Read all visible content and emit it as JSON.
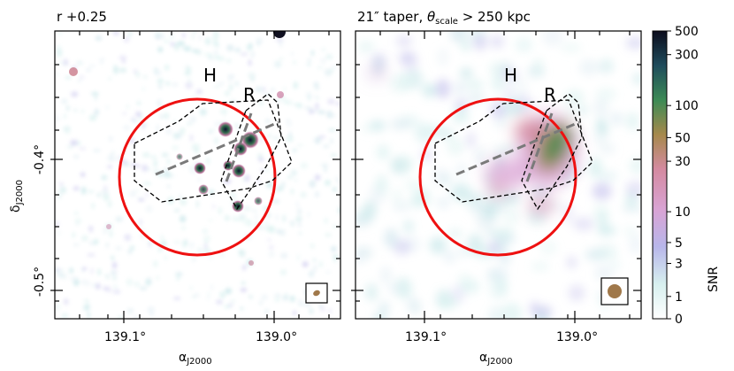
{
  "panels": [
    {
      "title_text": "r +0.25",
      "label_H": "H",
      "label_R": "R",
      "x_ticks": [
        "139.1°",
        "139.0°"
      ],
      "y_ticks": [
        "-0.4°",
        "-0.5°"
      ],
      "x_axis_label": "α",
      "x_axis_sub": "J2000",
      "y_axis_label": "δ",
      "y_axis_sub": "J2000"
    },
    {
      "title_main": "21″ taper, ",
      "title_theta": "θ",
      "title_sub": "scale",
      "title_rest": " > 250 kpc",
      "label_H": "H",
      "label_R": "R",
      "x_ticks": [
        "139.1°",
        "139.0°"
      ],
      "x_axis_label": "α",
      "x_axis_sub": "J2000"
    }
  ],
  "colorbar": {
    "label": "SNR",
    "ticks": [
      "500",
      "300",
      "100",
      "50",
      "30",
      "10",
      "5",
      "3",
      "1",
      "0"
    ],
    "tick_values": [
      500,
      300,
      100,
      50,
      30,
      10,
      5,
      3,
      1,
      0
    ]
  },
  "colors": {
    "circle": "#ee1111",
    "axis_line": "#7a7a7a",
    "region": "#000000",
    "beam": "#a0784a"
  }
}
